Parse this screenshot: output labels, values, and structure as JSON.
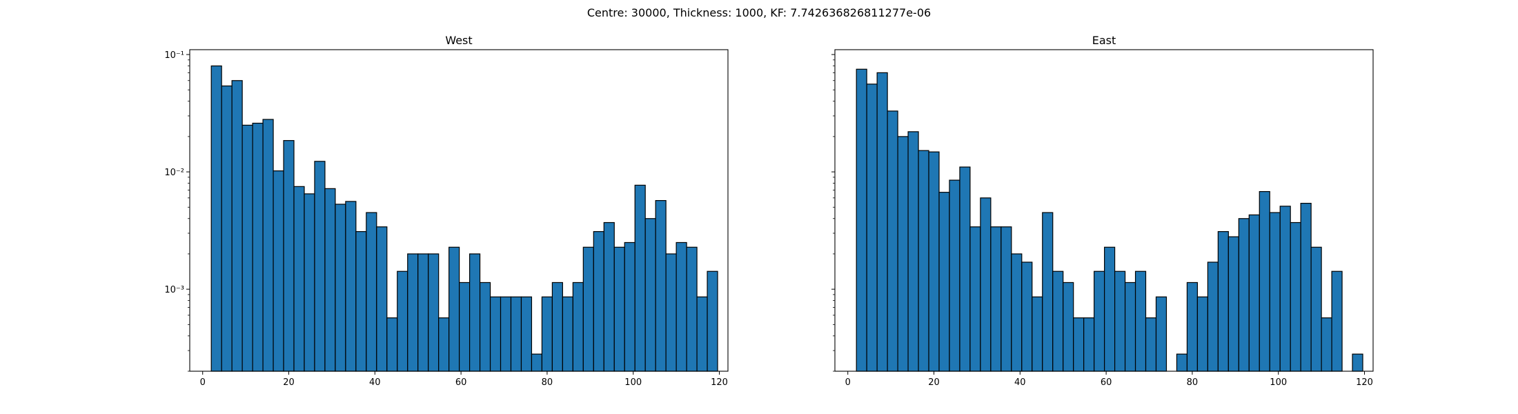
{
  "chart_data": {
    "suptitle": "Centre: 30000, Thickness: 1000, KF: 7.742636826811277e-06",
    "charts": [
      {
        "type": "bar",
        "title": "West",
        "yscale": "log",
        "ylim": [
          0.0002,
          0.11
        ],
        "xlim": [
          -3,
          122
        ],
        "xticks": [
          0,
          20,
          40,
          60,
          80,
          100,
          120
        ],
        "yticks": [
          {
            "value": 0.1,
            "label": "10⁻¹"
          },
          {
            "value": 0.01,
            "label": "10⁻²"
          },
          {
            "value": 0.001,
            "label": "10⁻³"
          }
        ],
        "bin_edges": [
          2,
          4.4,
          6.8,
          9.2,
          11.6,
          14,
          16.4,
          18.8,
          21.2,
          23.6,
          26,
          28.4,
          30.8,
          33.2,
          35.6,
          38,
          40.4,
          42.8,
          45.2,
          47.6,
          50,
          52.4,
          54.8,
          57.2,
          59.6,
          62,
          64.4,
          66.8,
          69.2,
          71.6,
          74,
          76.4,
          78.8,
          81.2,
          83.6,
          86,
          88.4,
          90.8,
          93.2,
          95.6,
          98,
          100.4,
          102.8,
          105.2,
          107.6,
          110,
          112.4,
          114.8,
          117.2,
          119.6
        ],
        "values": [
          0.08,
          0.054,
          0.06,
          0.025,
          0.026,
          0.028,
          0.0102,
          0.0185,
          0.0075,
          0.0065,
          0.0123,
          0.0072,
          0.0053,
          0.0056,
          0.0031,
          0.0045,
          0.0034,
          0.00057,
          0.00142,
          0.002,
          0.002,
          0.002,
          0.00057,
          0.00228,
          0.00114,
          0.002,
          0.00114,
          0.00086,
          0.00086,
          0.00086,
          0.00086,
          0.00028,
          0.00086,
          0.00114,
          0.00086,
          0.00114,
          0.00228,
          0.0031,
          0.0037,
          0.00228,
          0.0025,
          0.0077,
          0.004,
          0.0057,
          0.002,
          0.0025,
          0.00228,
          0.00086,
          0.00142
        ]
      },
      {
        "type": "bar",
        "title": "East",
        "yscale": "log",
        "ylim": [
          0.0002,
          0.11
        ],
        "xlim": [
          -3,
          122
        ],
        "xticks": [
          0,
          20,
          40,
          60,
          80,
          100,
          120
        ],
        "yticks": [],
        "bin_edges": [
          2,
          4.4,
          6.8,
          9.2,
          11.6,
          14,
          16.4,
          18.8,
          21.2,
          23.6,
          26,
          28.4,
          30.8,
          33.2,
          35.6,
          38,
          40.4,
          42.8,
          45.2,
          47.6,
          50,
          52.4,
          54.8,
          57.2,
          59.6,
          62,
          64.4,
          66.8,
          69.2,
          71.6,
          74,
          76.4,
          78.8,
          81.2,
          83.6,
          86,
          88.4,
          90.8,
          93.2,
          95.6,
          98,
          100.4,
          102.8,
          105.2,
          107.6,
          110,
          112.4,
          114.8,
          117.2,
          119.6
        ],
        "values": [
          0.075,
          0.056,
          0.07,
          0.033,
          0.02,
          0.022,
          0.0152,
          0.0148,
          0.0067,
          0.0085,
          0.011,
          0.0034,
          0.006,
          0.0034,
          0.0034,
          0.002,
          0.0017,
          0.00086,
          0.0045,
          0.00142,
          0.00114,
          0.00057,
          0.00057,
          0.00142,
          0.00228,
          0.00142,
          0.00114,
          0.00142,
          0.00057,
          0.00086,
          0,
          0.00028,
          0.00114,
          0.00086,
          0.0017,
          0.0031,
          0.0028,
          0.004,
          0.0043,
          0.0068,
          0.0045,
          0.0051,
          0.0037,
          0.0054,
          0.00228,
          0.00057,
          0.00142,
          0,
          0.00028
        ]
      }
    ]
  }
}
